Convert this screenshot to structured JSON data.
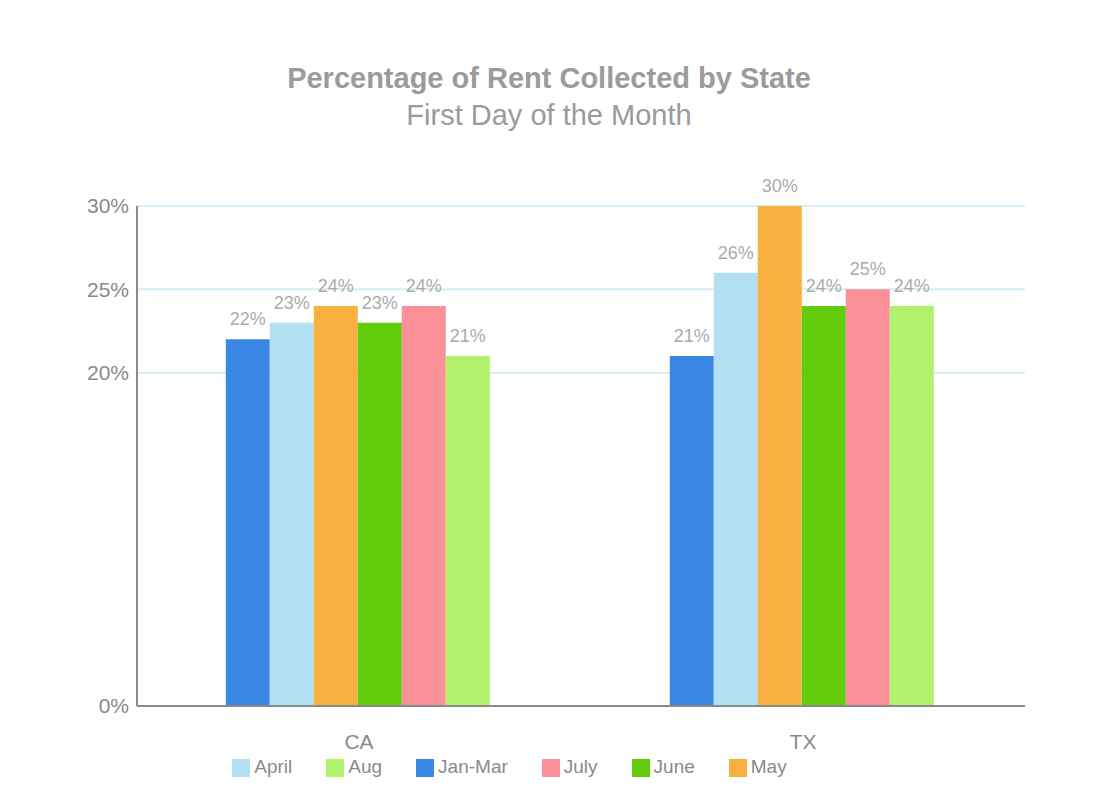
{
  "chart_data": {
    "type": "bar",
    "title": "Percentage of Rent Collected by State",
    "subtitle": "First Day of the Month",
    "categories": [
      "CA",
      "TX"
    ],
    "series": [
      {
        "name": "Jan-Mar",
        "color": "#3a87e6",
        "values": [
          22,
          21
        ],
        "value_labels": [
          "22%",
          "21%"
        ]
      },
      {
        "name": "April",
        "color": "#b3dff3",
        "values": [
          23,
          26
        ],
        "value_labels": [
          "23%",
          "26%"
        ]
      },
      {
        "name": "May",
        "color": "#f8b03e",
        "values": [
          24,
          30
        ],
        "value_labels": [
          "24%",
          "30%"
        ]
      },
      {
        "name": "June",
        "color": "#62cc0a",
        "values": [
          23,
          24
        ],
        "value_labels": [
          "23%",
          "24%"
        ]
      },
      {
        "name": "July",
        "color": "#fc9098",
        "values": [
          24,
          25
        ],
        "value_labels": [
          "24%",
          "25%"
        ]
      },
      {
        "name": "Aug",
        "color": "#b0f26c",
        "values": [
          21,
          24
        ],
        "value_labels": [
          "21%",
          "24%"
        ]
      }
    ],
    "ylim": [
      0,
      30
    ],
    "yticks": [
      {
        "value": 0,
        "label": "0%"
      },
      {
        "value": 20,
        "label": "20%"
      },
      {
        "value": 25,
        "label": "25%"
      },
      {
        "value": 30,
        "label": "30%"
      }
    ],
    "grid": true,
    "legend": "bottom",
    "data_labels": true
  }
}
